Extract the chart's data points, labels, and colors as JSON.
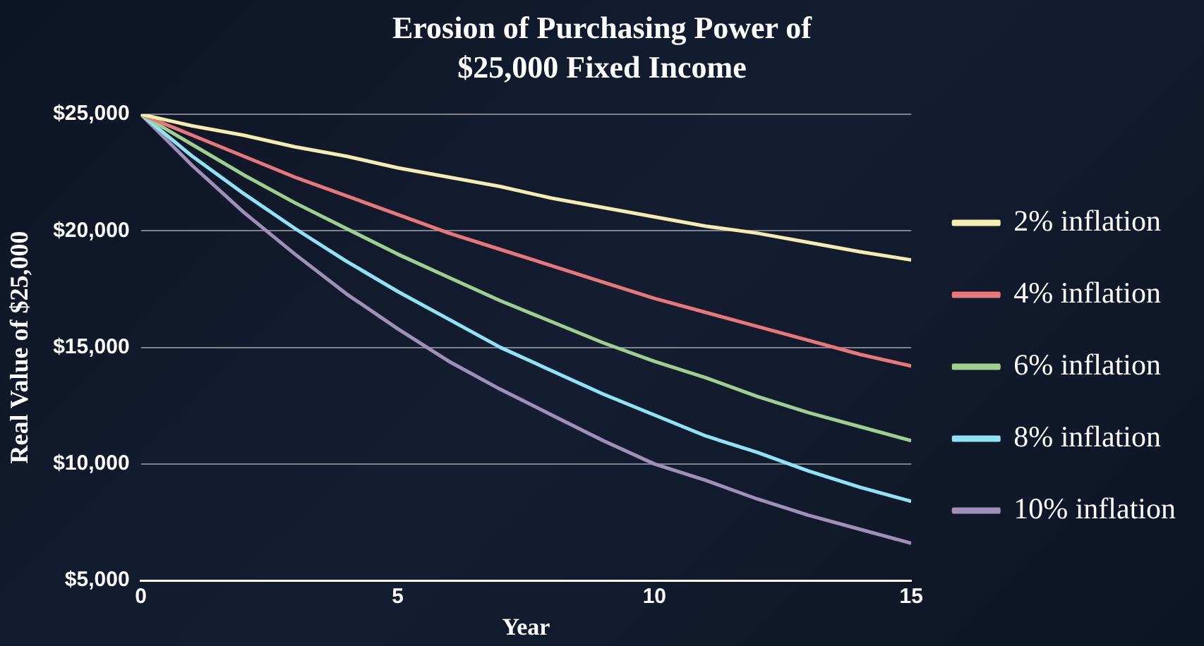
{
  "chart_data": {
    "type": "line",
    "title": "Erosion of Purchasing Power of $25,000 Fixed Income",
    "xlabel": "Year",
    "ylabel": "Real Value of $25,000",
    "x": [
      0,
      1,
      2,
      3,
      4,
      5,
      6,
      7,
      8,
      9,
      10,
      11,
      12,
      13,
      14,
      15
    ],
    "series": [
      {
        "name": "2% inflation",
        "color": "#f5ecb0",
        "values": [
          25000,
          24500,
          24100,
          23600,
          23200,
          22700,
          22300,
          21900,
          21400,
          21000,
          20600,
          20200,
          19900,
          19500,
          19100,
          18750
        ]
      },
      {
        "name": "4% inflation",
        "color": "#e8777a",
        "values": [
          25000,
          24100,
          23200,
          22300,
          21500,
          20700,
          19900,
          19200,
          18500,
          17800,
          17100,
          16500,
          15900,
          15300,
          14700,
          14200
        ]
      },
      {
        "name": "6% inflation",
        "color": "#9fcf8f",
        "values": [
          25000,
          23700,
          22400,
          21200,
          20100,
          19000,
          18000,
          17000,
          16100,
          15200,
          14400,
          13700,
          12900,
          12200,
          11600,
          11000
        ]
      },
      {
        "name": "8% inflation",
        "color": "#8ee3f5",
        "values": [
          25000,
          23200,
          21600,
          20100,
          18700,
          17400,
          16200,
          15000,
          14000,
          13000,
          12100,
          11200,
          10500,
          9700,
          9000,
          8400
        ]
      },
      {
        "name": "10% inflation",
        "color": "#a08fb8",
        "values": [
          25000,
          22800,
          20800,
          19000,
          17300,
          15800,
          14400,
          13200,
          12100,
          11000,
          10000,
          9300,
          8500,
          7800,
          7200,
          6600
        ]
      }
    ],
    "xlim": [
      0,
      15
    ],
    "xticks": [
      0,
      5,
      10,
      15
    ],
    "ylim": [
      5000,
      25000
    ],
    "yticks": [
      {
        "value": 5000,
        "label": "$5,000"
      },
      {
        "value": 10000,
        "label": "$10,000"
      },
      {
        "value": 15000,
        "label": "$15,000"
      },
      {
        "value": 20000,
        "label": "$20,000"
      },
      {
        "value": 25000,
        "label": "$25,000"
      }
    ],
    "grid": "y",
    "legend": "right",
    "marker": "none",
    "line_style": "solid"
  }
}
